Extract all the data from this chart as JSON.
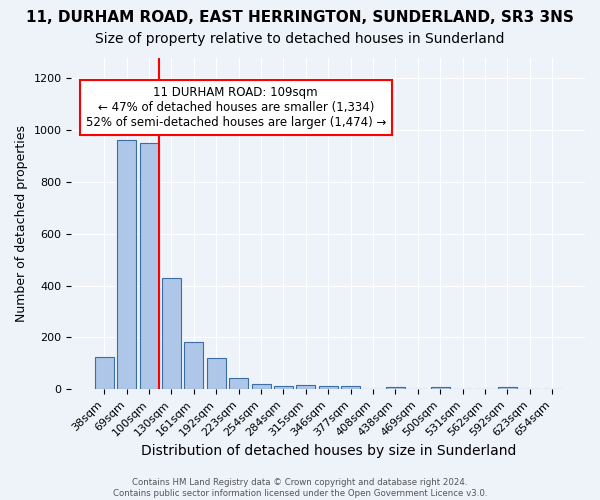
{
  "title": "11, DURHAM ROAD, EAST HERRINGTON, SUNDERLAND, SR3 3NS",
  "subtitle": "Size of property relative to detached houses in Sunderland",
  "xlabel": "Distribution of detached houses by size in Sunderland",
  "ylabel": "Number of detached properties",
  "categories": [
    "38sqm",
    "69sqm",
    "100sqm",
    "130sqm",
    "161sqm",
    "192sqm",
    "223sqm",
    "254sqm",
    "284sqm",
    "315sqm",
    "346sqm",
    "377sqm",
    "408sqm",
    "438sqm",
    "469sqm",
    "500sqm",
    "531sqm",
    "562sqm",
    "592sqm",
    "623sqm",
    "654sqm"
  ],
  "values": [
    125,
    960,
    950,
    430,
    183,
    120,
    43,
    20,
    12,
    15,
    14,
    12,
    0,
    8,
    0,
    8,
    0,
    0,
    10,
    0,
    0
  ],
  "bar_color": "#aec6e8",
  "bar_edge_color": "#3a6ea5",
  "red_line_index": 2,
  "annotation_text": "11 DURHAM ROAD: 109sqm\n← 47% of detached houses are smaller (1,334)\n52% of semi-detached houses are larger (1,474) →",
  "footnote": "Contains HM Land Registry data © Crown copyright and database right 2024.\nContains public sector information licensed under the Open Government Licence v3.0.",
  "background_color": "#eef2f9",
  "plot_background": "#eef2f9",
  "title_fontsize": 11,
  "subtitle_fontsize": 10,
  "xlabel_fontsize": 10,
  "ylabel_fontsize": 9,
  "tick_fontsize": 8,
  "annotation_fontsize": 8.5,
  "ylim": [
    0,
    1280
  ],
  "yticks": [
    0,
    200,
    400,
    600,
    800,
    1000,
    1200
  ]
}
